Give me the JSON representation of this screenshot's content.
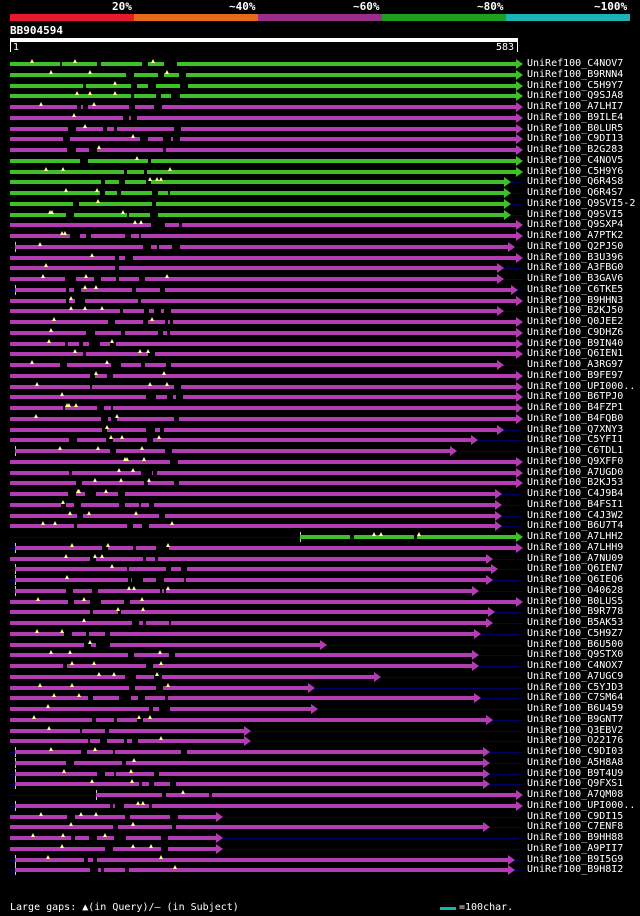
{
  "scale": {
    "labels": [
      "20%",
      "~40%",
      "~60%",
      "~80%",
      "~100%"
    ],
    "colors": [
      "#e8192c",
      "#e66a1a",
      "#9a2e8c",
      "#1ea01e",
      "#1ab4b4"
    ]
  },
  "query": {
    "name": "BB904594",
    "start": "1",
    "end": "583"
  },
  "colors": {
    "green": "#3fbf2a",
    "purple": "#b33cb3",
    "dim": "#000066"
  },
  "hits": [
    {
      "label": "UniRef100_C4NOV7",
      "color": "green",
      "s": 0,
      "e": 1
    },
    {
      "label": "UniRef100_B9RNN4",
      "color": "green",
      "s": 0,
      "e": 1
    },
    {
      "label": "UniRef100_C5H9Y7",
      "color": "green",
      "s": 0,
      "e": 1
    },
    {
      "label": "UniRef100_Q9SJA8",
      "color": "green",
      "s": 0,
      "e": 1
    },
    {
      "label": "UniRef100_A7LHI7",
      "color": "purple",
      "s": 0,
      "e": 1
    },
    {
      "label": "UniRef100_B9ILE4",
      "color": "purple",
      "s": 0,
      "e": 1
    },
    {
      "label": "UniRef100_B0LUR5",
      "color": "purple",
      "s": 0,
      "e": 1
    },
    {
      "label": "UniRef100_C9DI13",
      "color": "purple",
      "s": 0,
      "e": 1
    },
    {
      "label": "UniRef100_B2G283",
      "color": "purple",
      "s": 0,
      "e": 1
    },
    {
      "label": "UniRef100_C4NOV5",
      "color": "green",
      "s": 0,
      "e": 1
    },
    {
      "label": "UniRef100_C5H9Y6",
      "color": "green",
      "s": 0,
      "e": 1
    },
    {
      "label": "UniRef100_Q6R4S8",
      "color": "green",
      "s": 0,
      "e": 0.976
    },
    {
      "label": "UniRef100_Q6R4S7",
      "color": "green",
      "s": 0,
      "e": 0.976
    },
    {
      "label": "UniRef100_Q9SVI5-2",
      "color": "green",
      "s": 0,
      "e": 0.976
    },
    {
      "label": "UniRef100_Q9SVI5",
      "color": "green",
      "s": 0,
      "e": 0.976
    },
    {
      "label": "UniRef100_Q9SXP4",
      "color": "purple",
      "s": 0,
      "e": 1
    },
    {
      "label": "UniRef100_A7PTK2",
      "color": "purple",
      "s": 0,
      "e": 1
    },
    {
      "label": "UniRef100_Q2PJS0",
      "color": "purple",
      "s": 0.01,
      "e": 0.984
    },
    {
      "label": "UniRef100_B3U396",
      "color": "purple",
      "s": 0,
      "e": 1
    },
    {
      "label": "UniRef100_A3FBG0",
      "color": "purple",
      "s": 0,
      "e": 0.962
    },
    {
      "label": "UniRef100_B3GAV6",
      "color": "purple",
      "s": 0,
      "e": 0.962
    },
    {
      "label": "UniRef100_C6TKE5",
      "color": "purple",
      "s": 0.01,
      "e": 0.99
    },
    {
      "label": "UniRef100_B9HHN3",
      "color": "purple",
      "s": 0,
      "e": 1
    },
    {
      "label": "UniRef100_B2KJ50",
      "color": "purple",
      "s": 0,
      "e": 0.962
    },
    {
      "label": "UniRef100_Q0JEE2",
      "color": "purple",
      "s": 0,
      "e": 1
    },
    {
      "label": "UniRef100_C9DHZ6",
      "color": "purple",
      "s": 0,
      "e": 1
    },
    {
      "label": "UniRef100_B9IN40",
      "color": "purple",
      "s": 0,
      "e": 1
    },
    {
      "label": "UniRef100_Q6IEN1",
      "color": "purple",
      "s": 0,
      "e": 1
    },
    {
      "label": "UniRef100_A3RG97",
      "color": "purple",
      "s": 0,
      "e": 0.962
    },
    {
      "label": "UniRef100_B9FE97",
      "color": "purple",
      "s": 0,
      "e": 1
    },
    {
      "label": "UniRef100_UPI000..",
      "color": "purple",
      "s": 0,
      "e": 1
    },
    {
      "label": "UniRef100_B6TPJ0",
      "color": "purple",
      "s": 0,
      "e": 1
    },
    {
      "label": "UniRef100_B4FZP1",
      "color": "purple",
      "s": 0,
      "e": 1
    },
    {
      "label": "UniRef100_B4FQB0",
      "color": "purple",
      "s": 0,
      "e": 1
    },
    {
      "label": "UniRef100_Q7XNY3",
      "color": "purple",
      "s": 0,
      "e": 0.962
    },
    {
      "label": "UniRef100_C5YFI1",
      "color": "purple",
      "s": 0,
      "e": 0.912
    },
    {
      "label": "UniRef100_C6TDL1",
      "color": "purple",
      "s": 0.01,
      "e": 0.87
    },
    {
      "label": "UniRef100_Q9XFF0",
      "color": "purple",
      "s": 0,
      "e": 1
    },
    {
      "label": "UniRef100_A7UGD0",
      "color": "purple",
      "s": 0,
      "e": 1
    },
    {
      "label": "UniRef100_B2KJ53",
      "color": "purple",
      "s": 0,
      "e": 1
    },
    {
      "label": "UniRef100_C4J9B4",
      "color": "purple",
      "s": 0,
      "e": 0.958
    },
    {
      "label": "UniRef100_B4FSI1",
      "color": "purple",
      "s": 0,
      "e": 0.958
    },
    {
      "label": "UniRef100_C4J3W2",
      "color": "purple",
      "s": 0,
      "e": 0.958
    },
    {
      "label": "UniRef100_B6U7T4",
      "color": "purple",
      "s": 0,
      "e": 0.958
    },
    {
      "label": "UniRef100_A7LHH2",
      "color": "green",
      "s": 0.57,
      "e": 1
    },
    {
      "label": "UniRef100_A7LHH9",
      "color": "purple",
      "s": 0.01,
      "e": 1
    },
    {
      "label": "UniRef100_A7NU09",
      "color": "purple",
      "s": 0,
      "e": 0.94
    },
    {
      "label": "UniRef100_Q6IEN7",
      "color": "purple",
      "s": 0.01,
      "e": 0.95
    },
    {
      "label": "UniRef100_Q6IEQ6",
      "color": "purple",
      "s": 0.01,
      "e": 0.94
    },
    {
      "label": "UniRef100_O40628",
      "color": "purple",
      "s": 0.01,
      "e": 0.914
    },
    {
      "label": "UniRef100_B0LUS5",
      "color": "purple",
      "s": 0,
      "e": 1
    },
    {
      "label": "UniRef100_B9R778",
      "color": "purple",
      "s": 0,
      "e": 0.944
    },
    {
      "label": "UniRef100_B5AK53",
      "color": "purple",
      "s": 0,
      "e": 0.94
    },
    {
      "label": "UniRef100_C5H9Z7",
      "color": "purple",
      "s": 0,
      "e": 0.918
    },
    {
      "label": "UniRef100_B6U500",
      "color": "purple",
      "s": 0,
      "e": 0.615
    },
    {
      "label": "UniRef100_Q9STX0",
      "color": "purple",
      "s": 0,
      "e": 0.914
    },
    {
      "label": "UniRef100_C4NOX7",
      "color": "purple",
      "s": 0,
      "e": 0.914
    },
    {
      "label": "UniRef100_A7UGC9",
      "color": "purple",
      "s": 0,
      "e": 0.72
    },
    {
      "label": "UniRef100_C5YJD3",
      "color": "purple",
      "s": 0,
      "e": 0.59
    },
    {
      "label": "UniRef100_C7SM64",
      "color": "purple",
      "s": 0,
      "e": 0.918
    },
    {
      "label": "UniRef100_B6U459",
      "color": "purple",
      "s": 0,
      "e": 0.597
    },
    {
      "label": "UniRef100_B9GNT7",
      "color": "purple",
      "s": 0,
      "e": 0.94
    },
    {
      "label": "UniRef100_Q3EBV2",
      "color": "purple",
      "s": 0,
      "e": 0.465
    },
    {
      "label": "UniRef100_O22176",
      "color": "purple",
      "s": 0,
      "e": 0.465
    },
    {
      "label": "UniRef100_C9DI03",
      "color": "purple",
      "s": 0.01,
      "e": 0.936
    },
    {
      "label": "UniRef100_A5H8A8",
      "color": "purple",
      "s": 0.01,
      "e": 0.936
    },
    {
      "label": "UniRef100_B9T4U9",
      "color": "purple",
      "s": 0.01,
      "e": 0.936
    },
    {
      "label": "UniRef100_Q9FXS1",
      "color": "purple",
      "s": 0.01,
      "e": 0.936
    },
    {
      "label": "UniRef100_A7QM08",
      "color": "purple",
      "s": 0.17,
      "e": 1
    },
    {
      "label": "UniRef100_UPI000..",
      "color": "purple",
      "s": 0.01,
      "e": 1
    },
    {
      "label": "UniRef100_C9DI15",
      "color": "purple",
      "s": 0,
      "e": 0.41
    },
    {
      "label": "UniRef100_C7ENF8",
      "color": "purple",
      "s": 0,
      "e": 0.936
    },
    {
      "label": "UniRef100_B9HH88",
      "color": "purple",
      "s": 0,
      "e": 0.41
    },
    {
      "label": "UniRef100_A9PII7",
      "color": "purple",
      "s": 0,
      "e": 0.41
    },
    {
      "label": "UniRef100_B9I5G9",
      "color": "purple",
      "s": 0.01,
      "e": 0.985
    },
    {
      "label": "UniRef100_B9H8I2",
      "color": "purple",
      "s": 0.01,
      "e": 0.985
    }
  ],
  "footer": {
    "text": "Large gaps: ▲(in Query)/– (in Subject)",
    "legend": "=100char."
  }
}
